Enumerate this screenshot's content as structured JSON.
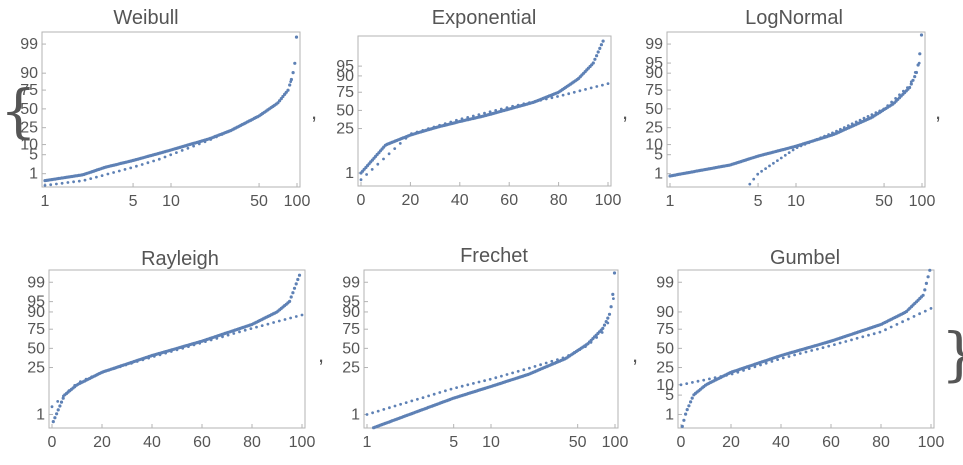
{
  "brackets": {
    "open": "{",
    "close": "}"
  },
  "separators": [
    ",",
    ",",
    ",",
    ",",
    ","
  ],
  "colors": {
    "points": "#5e81b5",
    "frame": "#b3b3b3",
    "text": "#555555",
    "background": "#ffffff"
  },
  "chart_data": [
    {
      "type": "scatter",
      "title": "Weibull",
      "x_scale": "log",
      "x_ticks": [
        "1",
        "5",
        "10",
        "50",
        "100"
      ],
      "y_ticks": [
        "1",
        "5",
        "10",
        "25",
        "50",
        "75",
        "90",
        "99"
      ],
      "xlim": [
        1,
        100
      ],
      "series": [
        {
          "values": [
            [
              1,
              0.5
            ],
            [
              2,
              0.9
            ],
            [
              3,
              1.8
            ],
            [
              5,
              3.2
            ],
            [
              8,
              5.5
            ],
            [
              10,
              7
            ],
            [
              20,
              14
            ],
            [
              30,
              22
            ],
            [
              50,
              40
            ],
            [
              70,
              58
            ],
            [
              85,
              75
            ],
            [
              92,
              88
            ],
            [
              97,
              96
            ],
            [
              99,
              99.5
            ]
          ]
        },
        {
          "values": [
            [
              1,
              0.3
            ],
            [
              2,
              0.5
            ],
            [
              3,
              0.9
            ],
            [
              5,
              1.8
            ],
            [
              8,
              3.5
            ],
            [
              10,
              5
            ],
            [
              20,
              13
            ],
            [
              30,
              22
            ],
            [
              50,
              40
            ],
            [
              70,
              58
            ],
            [
              85,
              75
            ],
            [
              92,
              88
            ],
            [
              97,
              96
            ],
            [
              99,
              99.5
            ]
          ]
        }
      ]
    },
    {
      "type": "scatter",
      "title": "Exponential",
      "x_scale": "linear",
      "x_ticks": [
        "0",
        "20",
        "40",
        "60",
        "80",
        "100"
      ],
      "y_ticks": [
        "1",
        "25",
        "50",
        "75",
        "90",
        "95"
      ],
      "xlim": [
        0,
        100
      ],
      "series": [
        {
          "values": [
            [
              0,
              1
            ],
            [
              10,
              10
            ],
            [
              20,
              18
            ],
            [
              30,
              26
            ],
            [
              40,
              34
            ],
            [
              50,
              42
            ],
            [
              60,
              52
            ],
            [
              70,
              62
            ],
            [
              80,
              75
            ],
            [
              88,
              88
            ],
            [
              94,
              96
            ],
            [
              98,
              99.5
            ]
          ]
        },
        {
          "values": [
            [
              0,
              0.5
            ],
            [
              20,
              19
            ],
            [
              40,
              37
            ],
            [
              60,
              55
            ],
            [
              80,
              70
            ],
            [
              100,
              84
            ]
          ]
        }
      ]
    },
    {
      "type": "scatter",
      "title": "LogNormal",
      "x_scale": "log",
      "x_ticks": [
        "1",
        "5",
        "10",
        "50",
        "100"
      ],
      "y_ticks": [
        "1",
        "5",
        "10",
        "25",
        "50",
        "75",
        "90",
        "95",
        "99"
      ],
      "xlim": [
        1,
        100
      ],
      "series": [
        {
          "values": [
            [
              1,
              0.8
            ],
            [
              3,
              2.2
            ],
            [
              5,
              4.5
            ],
            [
              10,
              9
            ],
            [
              20,
              18
            ],
            [
              40,
              38
            ],
            [
              60,
              58
            ],
            [
              80,
              78
            ],
            [
              90,
              90
            ],
            [
              95,
              96
            ],
            [
              99,
              99.6
            ]
          ]
        },
        {
          "values": [
            [
              4,
              0.2
            ],
            [
              5,
              1
            ],
            [
              10,
              8
            ],
            [
              20,
              20
            ],
            [
              50,
              50
            ],
            [
              80,
              80
            ],
            [
              95,
              95
            ]
          ]
        }
      ]
    },
    {
      "type": "scatter",
      "title": "Rayleigh",
      "x_scale": "linear",
      "x_ticks": [
        "0",
        "20",
        "40",
        "60",
        "80",
        "100"
      ],
      "y_ticks": [
        "1",
        "25",
        "50",
        "75",
        "90",
        "95",
        "99"
      ],
      "xlim": [
        0,
        100
      ],
      "series": [
        {
          "values": [
            [
              0.5,
              0.5
            ],
            [
              5,
              5
            ],
            [
              10,
              10
            ],
            [
              20,
              20
            ],
            [
              40,
              40
            ],
            [
              60,
              60
            ],
            [
              80,
              80
            ],
            [
              90,
              90
            ],
            [
              95,
              95
            ],
            [
              99,
              99.5
            ]
          ]
        },
        {
          "values": [
            [
              0,
              2
            ],
            [
              10,
              11
            ],
            [
              20,
              20
            ],
            [
              40,
              38
            ],
            [
              60,
              58
            ],
            [
              80,
              76
            ],
            [
              100,
              88
            ]
          ]
        }
      ]
    },
    {
      "type": "scatter",
      "title": "Frechet",
      "x_scale": "log",
      "x_ticks": [
        "1",
        "5",
        "10",
        "50",
        "100"
      ],
      "y_ticks": [
        "1",
        "25",
        "50",
        "75",
        "90",
        "95",
        "99"
      ],
      "xlim": [
        1,
        100
      ],
      "series": [
        {
          "values": [
            [
              1,
              0.2
            ],
            [
              5,
              4
            ],
            [
              10,
              9
            ],
            [
              20,
              18
            ],
            [
              40,
              36
            ],
            [
              60,
              56
            ],
            [
              80,
              76
            ],
            [
              90,
              88
            ],
            [
              95,
              95
            ],
            [
              99,
              99.6
            ]
          ]
        },
        {
          "values": [
            [
              1,
              1
            ],
            [
              5,
              8
            ],
            [
              10,
              14
            ],
            [
              20,
              24
            ],
            [
              40,
              38
            ],
            [
              60,
              54
            ],
            [
              80,
              72
            ],
            [
              90,
              84
            ],
            [
              97,
              96
            ]
          ]
        }
      ]
    },
    {
      "type": "scatter",
      "title": "Gumbel",
      "x_scale": "linear",
      "x_ticks": [
        "0",
        "20",
        "40",
        "60",
        "80",
        "100"
      ],
      "y_ticks": [
        "1",
        "5",
        "10",
        "25",
        "50",
        "75",
        "90",
        "99"
      ],
      "xlim": [
        0,
        100
      ],
      "series": [
        {
          "values": [
            [
              0.5,
              0.3
            ],
            [
              2,
              1.2
            ],
            [
              5,
              5
            ],
            [
              10,
              10
            ],
            [
              20,
              20
            ],
            [
              40,
              40
            ],
            [
              60,
              60
            ],
            [
              80,
              80
            ],
            [
              90,
              90
            ],
            [
              97,
              97
            ],
            [
              99.5,
              99.7
            ]
          ]
        },
        {
          "values": [
            [
              0,
              10
            ],
            [
              20,
              18
            ],
            [
              40,
              36
            ],
            [
              60,
              54
            ],
            [
              80,
              72
            ],
            [
              100,
              92
            ]
          ]
        }
      ]
    }
  ]
}
